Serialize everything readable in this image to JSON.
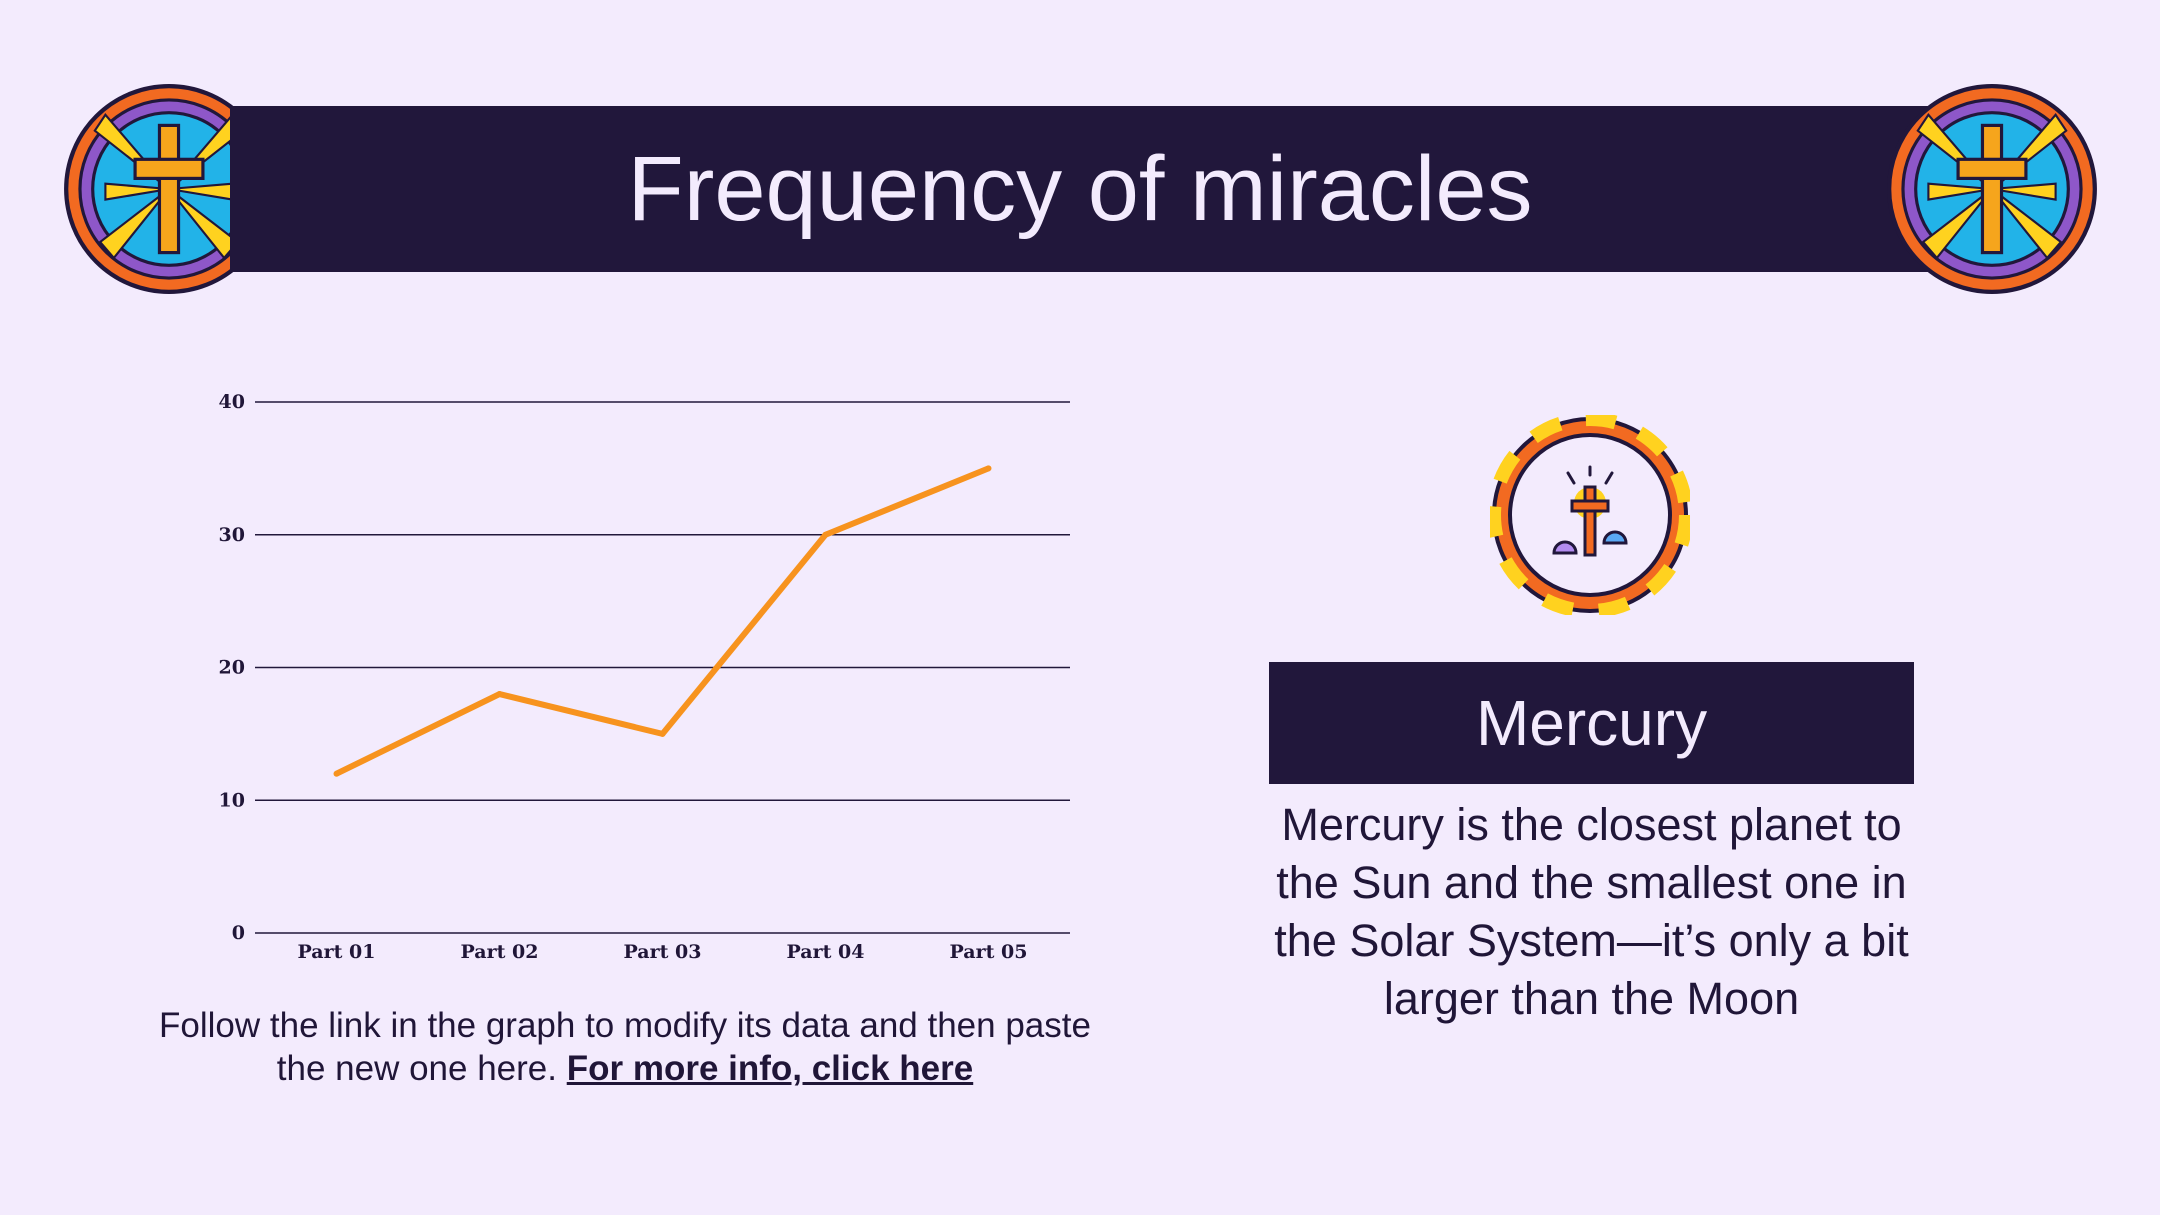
{
  "slide": {
    "title": "Frequency of miracles",
    "caption_text": "Follow the link in the graph to modify its data and then paste the new one here. ",
    "caption_link": "For more info, click here"
  },
  "card": {
    "title": "Mercury",
    "description": "Mercury is the closest planet to the Sun and the smallest one in the Solar System—it’s only a bit larger than the Moon"
  },
  "icons": {
    "left_medallion": "stained-glass-cross-icon",
    "right_medallion": "stained-glass-cross-icon",
    "badge": "glowing-cross-icon"
  },
  "colors": {
    "background": "#f3ebfd",
    "banner": "#21173b",
    "line": "#f7931e",
    "text": "#201638"
  },
  "chart_data": {
    "type": "line",
    "categories": [
      "Part 01",
      "Part 02",
      "Part 03",
      "Part 04",
      "Part 05"
    ],
    "series": [
      {
        "values": [
          12,
          18,
          15,
          30,
          35
        ]
      }
    ],
    "yticks": [
      0,
      10,
      20,
      30,
      40
    ],
    "ylim": [
      0,
      40
    ],
    "grid": true,
    "legend": "none",
    "title": "",
    "xlabel": "",
    "ylabel": ""
  }
}
